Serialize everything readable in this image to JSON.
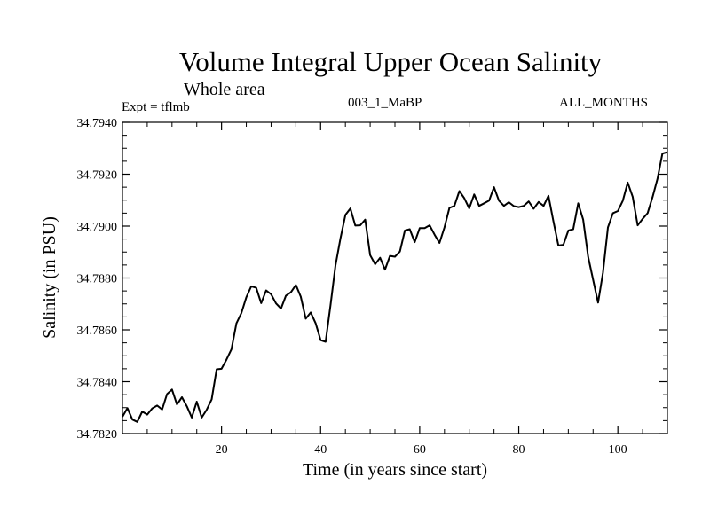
{
  "header": {
    "title": "Volume Integral Upper Ocean Salinity",
    "subtitle": "Whole area",
    "experiment": "Expt = tflmb",
    "run_id": "003_1_MaBP",
    "period": "ALL_MONTHS"
  },
  "chart_data": {
    "type": "line",
    "title": "Volume Integral Upper Ocean Salinity",
    "xlabel": "Time (in years since start)",
    "ylabel": "Salinity (in PSU)",
    "xlim": [
      0,
      110
    ],
    "ylim": [
      34.782,
      34.794
    ],
    "x_ticks": [
      20,
      40,
      60,
      80,
      100
    ],
    "y_ticks": [
      "34.7820",
      "34.7840",
      "34.7860",
      "34.7880",
      "34.7900",
      "34.7920",
      "34.7940"
    ],
    "series": [
      {
        "name": "Salinity",
        "color": "#000000",
        "x": [
          0,
          1,
          2,
          3,
          4,
          5,
          6,
          7,
          8,
          9,
          10,
          11,
          12,
          13,
          14,
          15,
          16,
          17,
          18,
          19,
          20,
          21,
          22,
          23,
          24,
          25,
          26,
          27,
          28,
          29,
          30,
          31,
          32,
          33,
          34,
          35,
          36,
          37,
          38,
          39,
          40,
          41,
          42,
          43,
          44,
          45,
          46,
          47,
          48,
          49,
          50,
          51,
          52,
          53,
          54,
          55,
          56,
          57,
          58,
          59,
          60,
          61,
          62,
          63,
          64,
          65,
          66,
          67,
          68,
          69,
          70,
          71,
          72,
          73,
          74,
          75,
          76,
          77,
          78,
          79,
          80,
          81,
          82,
          83,
          84,
          85,
          86,
          87,
          88,
          89,
          90,
          91,
          92,
          93,
          94,
          95,
          96,
          97,
          98,
          99,
          100,
          101,
          102,
          103,
          104,
          105,
          106,
          107,
          108,
          109,
          110
        ],
        "values": [
          34.78265,
          34.78298,
          34.78254,
          34.78245,
          34.78285,
          34.78273,
          34.78297,
          34.78308,
          34.78293,
          34.78352,
          34.7837,
          34.78312,
          34.7834,
          34.78305,
          34.78262,
          34.78323,
          34.78262,
          34.78292,
          34.78332,
          34.78448,
          34.7845,
          34.78485,
          34.78525,
          34.78625,
          34.78665,
          34.78725,
          34.78768,
          34.78762,
          34.78703,
          34.78752,
          34.78737,
          34.78702,
          34.78682,
          34.78732,
          34.78745,
          34.78773,
          34.78728,
          34.78643,
          34.78667,
          34.78625,
          34.7856,
          34.78554,
          34.78695,
          34.78848,
          34.78952,
          34.79043,
          34.79068,
          34.79002,
          34.79003,
          34.79025,
          34.78888,
          34.78853,
          34.78878,
          34.78832,
          34.78885,
          34.78882,
          34.78902,
          34.78983,
          34.78988,
          34.78938,
          34.78992,
          34.78992,
          34.79003,
          34.78967,
          34.78935,
          34.78995,
          34.7907,
          34.79078,
          34.79135,
          34.79108,
          34.79068,
          34.79122,
          34.79078,
          34.79088,
          34.79098,
          34.7915,
          34.79098,
          34.79078,
          34.79092,
          34.79077,
          34.79073,
          34.79078,
          34.79095,
          34.79067,
          34.79093,
          34.79078,
          34.79117,
          34.79018,
          34.78925,
          34.78928,
          34.78983,
          34.78988,
          34.79088,
          34.79025,
          34.78882,
          34.78793,
          34.78705,
          34.7882,
          34.78995,
          34.7905,
          34.79058,
          34.79098,
          34.79168,
          34.79113,
          34.79003,
          34.79028,
          34.7905,
          34.79112,
          34.79182,
          34.7928,
          34.79285
        ]
      }
    ]
  }
}
